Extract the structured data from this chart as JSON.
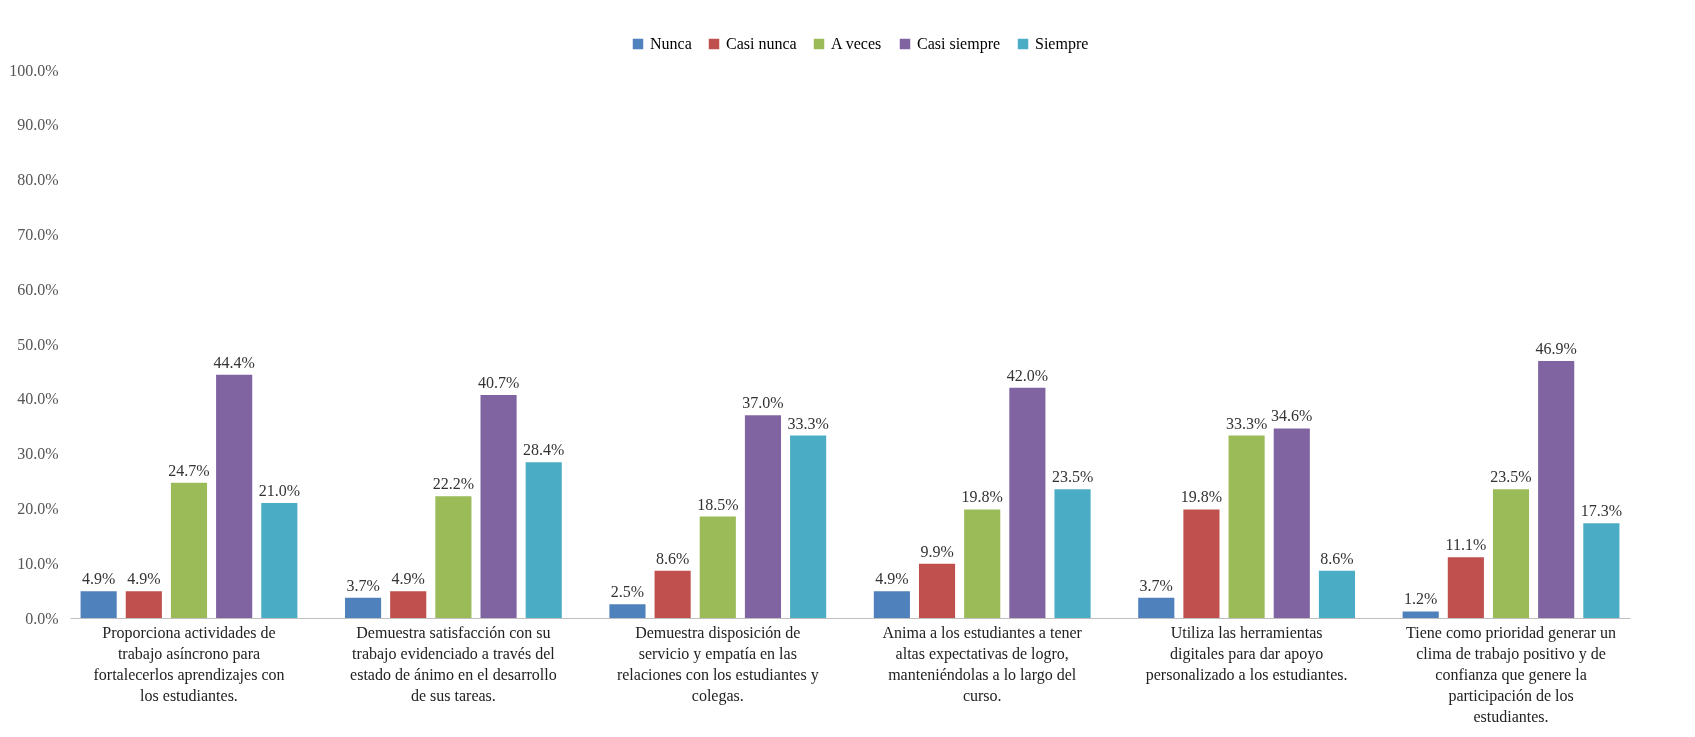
{
  "chart_data": {
    "type": "bar",
    "legend": "top",
    "grid": false,
    "categories": [
      "Proporciona actividades de trabajo asíncrono para fortalecerlos aprendizajes con los estudiantes.",
      "Demuestra satisfacción con su trabajo evidenciado a través del estado de ánimo en el desarrollo de sus tareas.",
      "Demuestra disposición de servicio y empatía en las relaciones con los estudiantes y colegas.",
      "Anima a los estudiantes a tener altas expectativas de logro, manteniéndolas a lo largo del curso.",
      "Utiliza las herramientas digitales para dar apoyo personalizado a los estudiantes.",
      "Tiene como prioridad generar un clima de trabajo positivo y de confianza que genere la participación de los estudiantes."
    ],
    "ylim": [
      0,
      100
    ],
    "yticks": [
      {
        "value": 0,
        "label": "0.0%"
      },
      {
        "value": 10,
        "label": "10.0%"
      },
      {
        "value": 20,
        "label": "20.0%"
      },
      {
        "value": 30,
        "label": "30.0%"
      },
      {
        "value": 40,
        "label": "40.0%"
      },
      {
        "value": 50,
        "label": "50.0%"
      },
      {
        "value": 60,
        "label": "60.0%"
      },
      {
        "value": 70,
        "label": "70.0%"
      },
      {
        "value": 80,
        "label": "80.0%"
      },
      {
        "value": 90,
        "label": "90.0%"
      },
      {
        "value": 100,
        "label": "100.0%"
      }
    ],
    "series": [
      {
        "name": "Nunca",
        "color": "#4f81bd",
        "values": [
          4.9,
          3.7,
          2.5,
          4.9,
          3.7,
          1.2
        ],
        "value_labels": [
          "4.9%",
          "3.7%",
          "2.5%",
          "4.9%",
          "3.7%",
          "1.2%"
        ]
      },
      {
        "name": "Casi nunca",
        "color": "#c0504d",
        "values": [
          4.9,
          4.9,
          8.6,
          9.9,
          19.8,
          11.1
        ],
        "value_labels": [
          "4.9%",
          "4.9%",
          "8.6%",
          "9.9%",
          "19.8%",
          "11.1%"
        ]
      },
      {
        "name": "A veces",
        "color": "#9bbb59",
        "values": [
          24.7,
          22.2,
          18.5,
          19.8,
          33.3,
          23.5
        ],
        "value_labels": [
          "24.7%",
          "22.2%",
          "18.5%",
          "19.8%",
          "33.3%",
          "23.5%"
        ]
      },
      {
        "name": "Casi siempre",
        "color": "#8064a2",
        "values": [
          44.4,
          40.7,
          37.0,
          42.0,
          34.6,
          46.9
        ],
        "value_labels": [
          "44.4%",
          "40.7%",
          "37.0%",
          "42.0%",
          "34.6%",
          "46.9%"
        ]
      },
      {
        "name": "Siempre",
        "color": "#4bacc6",
        "values": [
          21.0,
          28.4,
          33.3,
          23.5,
          8.6,
          17.3
        ],
        "value_labels": [
          "21.0%",
          "28.4%",
          "33.3%",
          "23.5%",
          "8.6%",
          "17.3%"
        ]
      }
    ]
  }
}
